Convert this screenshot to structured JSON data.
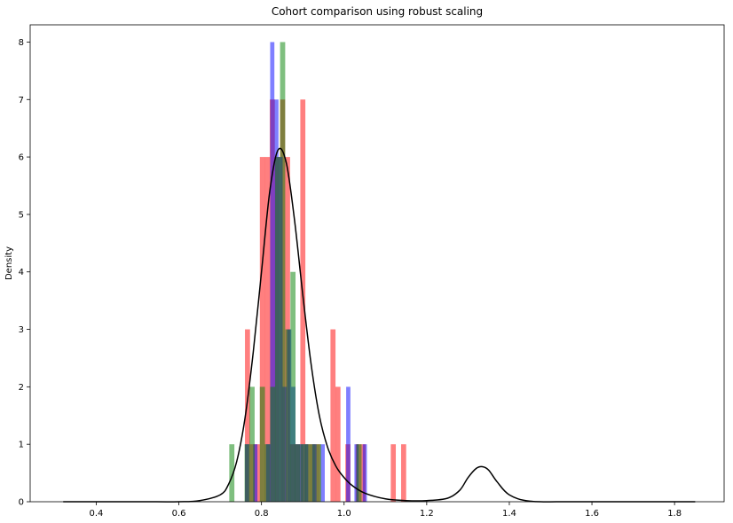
{
  "chart_data": {
    "type": "histogram",
    "title": "Cohort comparison using robust scaling",
    "xlabel": "",
    "ylabel": "Density",
    "xlim": [
      0.24,
      1.92
    ],
    "ylim": [
      0,
      8.3
    ],
    "xticks": [
      "0.4",
      "0.6",
      "0.8",
      "1.0",
      "1.2",
      "1.4",
      "1.6",
      "1.8"
    ],
    "yticks": [
      "0",
      "1",
      "2",
      "3",
      "4",
      "5",
      "6",
      "7",
      "8"
    ],
    "grid": false,
    "legend": "none",
    "series": [
      {
        "color": "#ff0000",
        "alpha": 0.5,
        "bin_width": 0.0122,
        "bars": [
          [
            0.76,
            3
          ],
          [
            0.772,
            1
          ],
          [
            0.784,
            1
          ],
          [
            0.796,
            6
          ],
          [
            0.808,
            6
          ],
          [
            0.82,
            7
          ],
          [
            0.832,
            6
          ],
          [
            0.845,
            7
          ],
          [
            0.857,
            6
          ],
          [
            0.869,
            1
          ],
          [
            0.881,
            1
          ],
          [
            0.894,
            7
          ],
          [
            0.906,
            1
          ],
          [
            0.918,
            1
          ],
          [
            0.93,
            1
          ],
          [
            0.967,
            3
          ],
          [
            0.979,
            2
          ],
          [
            1.003,
            1
          ],
          [
            1.028,
            1
          ],
          [
            1.04,
            1
          ],
          [
            1.113,
            1
          ],
          [
            1.138,
            1
          ]
        ]
      },
      {
        "color": "#0000ff",
        "alpha": 0.5,
        "bin_width": 0.0102,
        "bars": [
          [
            0.76,
            1
          ],
          [
            0.78,
            1
          ],
          [
            0.811,
            1
          ],
          [
            0.821,
            8
          ],
          [
            0.831,
            7
          ],
          [
            0.841,
            6
          ],
          [
            0.851,
            2
          ],
          [
            0.862,
            3
          ],
          [
            0.872,
            2
          ],
          [
            0.882,
            1
          ],
          [
            0.892,
            1
          ],
          [
            0.903,
            1
          ],
          [
            0.923,
            1
          ],
          [
            0.943,
            1
          ],
          [
            1.005,
            2
          ],
          [
            1.025,
            1
          ],
          [
            1.045,
            1
          ]
        ]
      },
      {
        "color": "#008000",
        "alpha": 0.5,
        "bin_width": 0.0124,
        "bars": [
          [
            0.722,
            1
          ],
          [
            0.759,
            1
          ],
          [
            0.771,
            2
          ],
          [
            0.796,
            2
          ],
          [
            0.808,
            1
          ],
          [
            0.821,
            2
          ],
          [
            0.833,
            6
          ],
          [
            0.845,
            8
          ],
          [
            0.858,
            3
          ],
          [
            0.87,
            4
          ],
          [
            0.882,
            1
          ],
          [
            0.895,
            1
          ],
          [
            0.907,
            1
          ],
          [
            0.919,
            1
          ],
          [
            0.932,
            1
          ],
          [
            1.03,
            1
          ]
        ]
      }
    ],
    "kde": {
      "color": "#000000",
      "x": [
        0.32,
        0.5,
        0.6,
        0.65,
        0.7,
        0.72,
        0.74,
        0.76,
        0.78,
        0.8,
        0.82,
        0.84,
        0.86,
        0.88,
        0.9,
        0.92,
        0.94,
        0.96,
        0.98,
        1.0,
        1.02,
        1.05,
        1.1,
        1.15,
        1.2,
        1.25,
        1.28,
        1.3,
        1.32,
        1.335,
        1.35,
        1.37,
        1.4,
        1.45,
        1.55,
        1.7,
        1.85
      ],
      "y": [
        0.0,
        0.0,
        0.0,
        0.02,
        0.12,
        0.3,
        0.7,
        1.45,
        2.6,
        4.0,
        5.4,
        6.12,
        5.9,
        4.9,
        3.6,
        2.4,
        1.5,
        0.95,
        0.62,
        0.42,
        0.28,
        0.15,
        0.05,
        0.02,
        0.02,
        0.06,
        0.2,
        0.42,
        0.58,
        0.61,
        0.55,
        0.35,
        0.12,
        0.01,
        0.0,
        0.0,
        0.0
      ]
    }
  }
}
